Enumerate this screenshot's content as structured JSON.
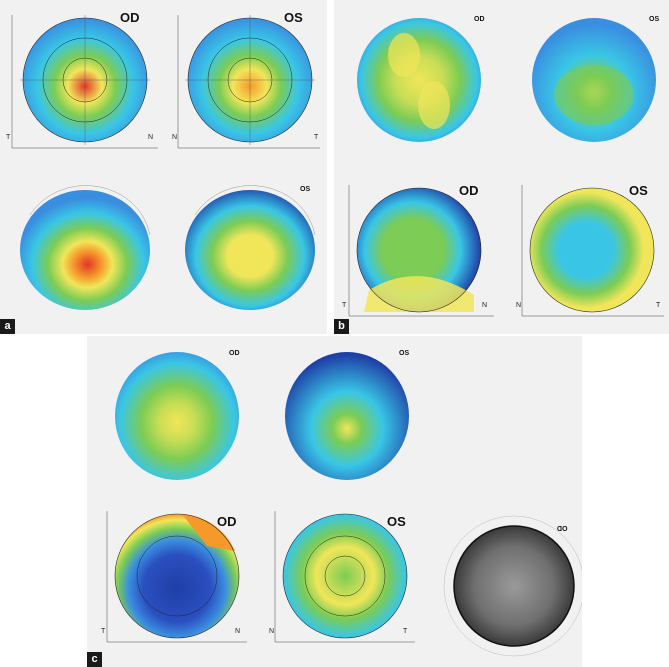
{
  "panels": {
    "a": {
      "letter": "a",
      "maps": [
        {
          "eye": "OD",
          "axis_left": "T",
          "axis_right": "N"
        },
        {
          "eye": "OS",
          "axis_left": "N",
          "axis_right": "T"
        },
        {
          "eye": ""
        },
        {
          "eye": "OS"
        }
      ]
    },
    "b": {
      "letter": "b",
      "maps": [
        {
          "eye": "OD"
        },
        {
          "eye": "OS"
        },
        {
          "eye": "OD",
          "axis_left": "T",
          "axis_right": "N"
        },
        {
          "eye": "OS",
          "axis_left": "N",
          "axis_right": "T"
        }
      ]
    },
    "c": {
      "letter": "c",
      "maps": [
        {
          "eye": "OD"
        },
        {
          "eye": "OS"
        },
        {
          "eye": "OD",
          "axis_left": "T",
          "axis_right": "N"
        },
        {
          "eye": "OS",
          "axis_left": "N",
          "axis_right": "T"
        },
        {
          "eye": "OD"
        }
      ]
    }
  },
  "colors": {
    "blue_dark": "#1f3fa6",
    "blue": "#3a8ee0",
    "cyan": "#39c6e6",
    "green": "#7ccc55",
    "yellow": "#f1e65a",
    "orange": "#f59a2a",
    "red": "#e2362a",
    "grey_photo": "#7a7a7a"
  }
}
